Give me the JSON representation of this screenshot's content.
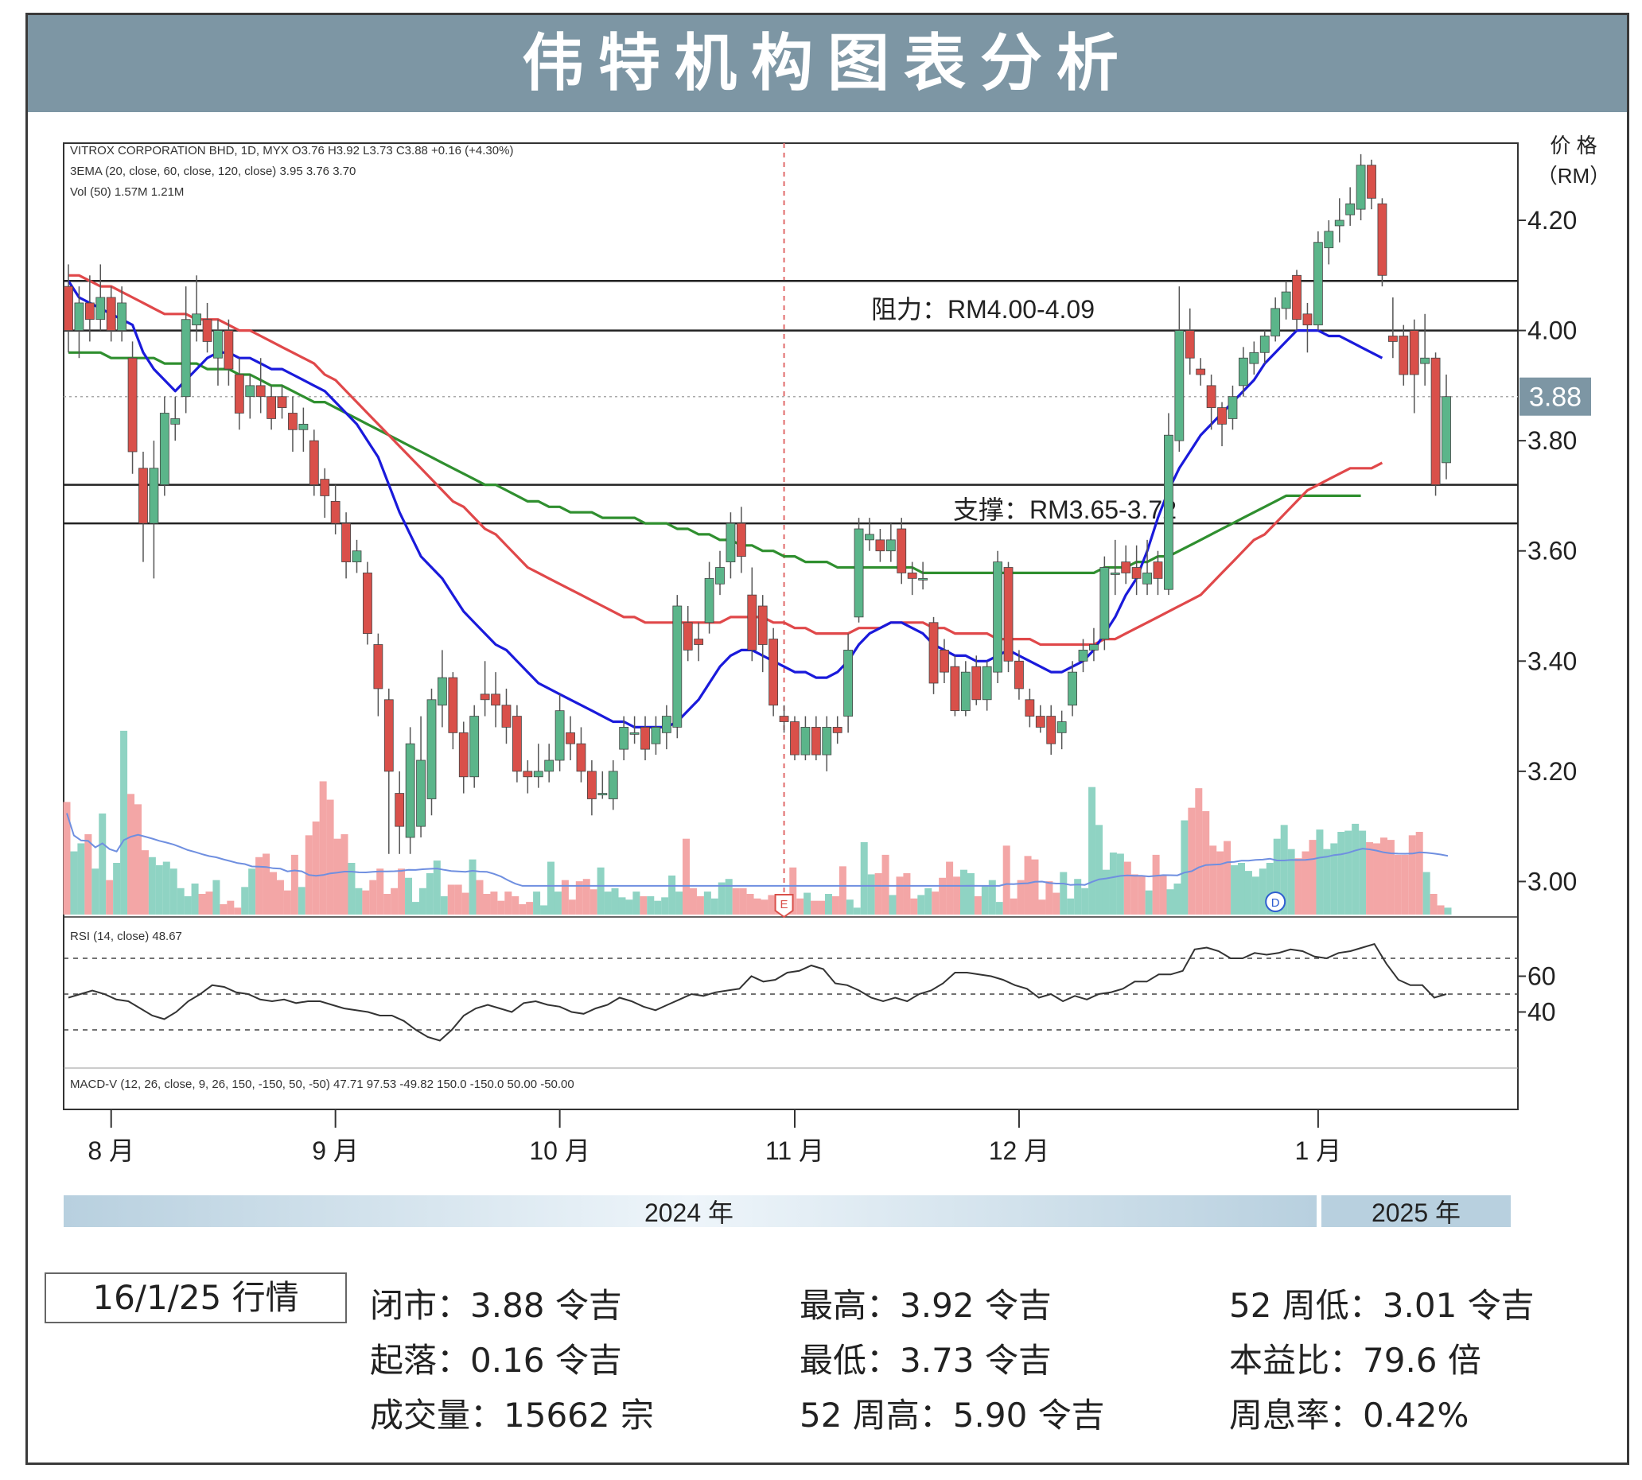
{
  "title": "伟特机构图表分析",
  "chart_data": {
    "type": "candlestick",
    "header_lines": [
      "VITROX CORPORATION BHD, 1D, MYX  O3.76  H3.92  L3.73  C3.88  +0.16 (+4.30%)",
      "3EMA (20, close, 60, close, 120, close)  3.95  3.76  3.70",
      "Vol (50)  1.57M  1.21M"
    ],
    "price_axis_title": [
      "价 格",
      "（RM）"
    ],
    "price_ticks": [
      "4.20",
      "4.00",
      "3.80",
      "3.60",
      "3.40",
      "3.20",
      "3.00"
    ],
    "price_tick_values": [
      4.2,
      4.0,
      3.8,
      3.6,
      3.4,
      3.2,
      3.0
    ],
    "ylim": [
      2.94,
      4.34
    ],
    "last_price_label": "3.88",
    "last_price": 3.88,
    "resistance": {
      "label": "阻力：RM4.00-4.09",
      "low": 4.0,
      "high": 4.09
    },
    "support": {
      "label": "支撑：RM3.65-3.72",
      "low": 3.65,
      "high": 3.72
    },
    "earnings_marker": "E",
    "dividend_marker": "D",
    "candles": [
      [
        4.08,
        4.0,
        4.12,
        3.96
      ],
      [
        4.0,
        4.05,
        4.08,
        3.95
      ],
      [
        4.05,
        4.02,
        4.1,
        3.98
      ],
      [
        4.02,
        4.06,
        4.12,
        4.0
      ],
      [
        4.06,
        4.0,
        4.08,
        3.98
      ],
      [
        4.0,
        4.05,
        4.08,
        3.98
      ],
      [
        3.95,
        3.78,
        3.98,
        3.74
      ],
      [
        3.75,
        3.65,
        3.78,
        3.58
      ],
      [
        3.65,
        3.75,
        3.8,
        3.55
      ],
      [
        3.72,
        3.85,
        3.88,
        3.7
      ],
      [
        3.83,
        3.84,
        3.88,
        3.8
      ],
      [
        3.88,
        4.02,
        4.08,
        3.85
      ],
      [
        4.01,
        4.03,
        4.1,
        3.98
      ],
      [
        4.02,
        3.98,
        4.05,
        3.96
      ],
      [
        3.95,
        4.0,
        4.02,
        3.9
      ],
      [
        4.0,
        3.93,
        4.02,
        3.9
      ],
      [
        3.92,
        3.85,
        3.95,
        3.82
      ],
      [
        3.88,
        3.9,
        3.92,
        3.84
      ],
      [
        3.9,
        3.88,
        3.95,
        3.85
      ],
      [
        3.88,
        3.84,
        3.9,
        3.82
      ],
      [
        3.88,
        3.86,
        3.9,
        3.84
      ],
      [
        3.85,
        3.82,
        3.88,
        3.78
      ],
      [
        3.82,
        3.83,
        3.86,
        3.78
      ],
      [
        3.8,
        3.72,
        3.82,
        3.7
      ],
      [
        3.73,
        3.7,
        3.75,
        3.66
      ],
      [
        3.69,
        3.65,
        3.72,
        3.63
      ],
      [
        3.65,
        3.58,
        3.67,
        3.55
      ],
      [
        3.58,
        3.6,
        3.62,
        3.56
      ],
      [
        3.56,
        3.45,
        3.58,
        3.43
      ],
      [
        3.43,
        3.35,
        3.45,
        3.3
      ],
      [
        3.33,
        3.2,
        3.35,
        3.05
      ],
      [
        3.16,
        3.1,
        3.2,
        3.05
      ],
      [
        3.08,
        3.25,
        3.28,
        3.05
      ],
      [
        3.1,
        3.22,
        3.3,
        3.08
      ],
      [
        3.15,
        3.33,
        3.35,
        3.12
      ],
      [
        3.32,
        3.37,
        3.42,
        3.28
      ],
      [
        3.37,
        3.27,
        3.38,
        3.24
      ],
      [
        3.27,
        3.19,
        3.29,
        3.16
      ],
      [
        3.19,
        3.3,
        3.32,
        3.17
      ],
      [
        3.34,
        3.33,
        3.4,
        3.3
      ],
      [
        3.34,
        3.32,
        3.38,
        3.28
      ],
      [
        3.32,
        3.28,
        3.35,
        3.25
      ],
      [
        3.3,
        3.2,
        3.32,
        3.18
      ],
      [
        3.2,
        3.19,
        3.22,
        3.16
      ],
      [
        3.19,
        3.2,
        3.25,
        3.17
      ],
      [
        3.2,
        3.22,
        3.25,
        3.18
      ],
      [
        3.22,
        3.31,
        3.34,
        3.2
      ],
      [
        3.27,
        3.25,
        3.3,
        3.22
      ],
      [
        3.25,
        3.2,
        3.28,
        3.18
      ],
      [
        3.2,
        3.15,
        3.22,
        3.12
      ],
      [
        3.16,
        3.16,
        3.2,
        3.15
      ],
      [
        3.15,
        3.2,
        3.22,
        3.13
      ],
      [
        3.24,
        3.28,
        3.3,
        3.22
      ],
      [
        3.27,
        3.27,
        3.3,
        3.25
      ],
      [
        3.28,
        3.24,
        3.3,
        3.22
      ],
      [
        3.25,
        3.28,
        3.3,
        3.23
      ],
      [
        3.27,
        3.3,
        3.32,
        3.24
      ],
      [
        3.28,
        3.5,
        3.52,
        3.26
      ],
      [
        3.47,
        3.42,
        3.5,
        3.4
      ],
      [
        3.44,
        3.43,
        3.47,
        3.4
      ],
      [
        3.47,
        3.55,
        3.58,
        3.45
      ],
      [
        3.54,
        3.57,
        3.6,
        3.52
      ],
      [
        3.58,
        3.65,
        3.67,
        3.55
      ],
      [
        3.65,
        3.59,
        3.68,
        3.56
      ],
      [
        3.52,
        3.42,
        3.57,
        3.4
      ],
      [
        3.5,
        3.43,
        3.52,
        3.38
      ],
      [
        3.44,
        3.32,
        3.46,
        3.3
      ],
      [
        3.3,
        3.29,
        3.32,
        3.27
      ],
      [
        3.29,
        3.23,
        3.3,
        3.22
      ],
      [
        3.23,
        3.28,
        3.3,
        3.22
      ],
      [
        3.28,
        3.23,
        3.3,
        3.22
      ],
      [
        3.23,
        3.28,
        3.3,
        3.2
      ],
      [
        3.28,
        3.27,
        3.3,
        3.25
      ],
      [
        3.3,
        3.42,
        3.45,
        3.27
      ],
      [
        3.48,
        3.64,
        3.66,
        3.47
      ],
      [
        3.62,
        3.63,
        3.66,
        3.6
      ],
      [
        3.62,
        3.6,
        3.64,
        3.58
      ],
      [
        3.6,
        3.62,
        3.65,
        3.58
      ],
      [
        3.64,
        3.56,
        3.66,
        3.54
      ],
      [
        3.56,
        3.55,
        3.58,
        3.52
      ],
      [
        3.55,
        3.55,
        3.58,
        3.53
      ],
      [
        3.47,
        3.36,
        3.48,
        3.34
      ],
      [
        3.42,
        3.38,
        3.44,
        3.36
      ],
      [
        3.39,
        3.31,
        3.41,
        3.3
      ],
      [
        3.31,
        3.38,
        3.4,
        3.3
      ],
      [
        3.39,
        3.33,
        3.41,
        3.32
      ],
      [
        3.33,
        3.39,
        3.4,
        3.31
      ],
      [
        3.38,
        3.58,
        3.6,
        3.36
      ],
      [
        3.57,
        3.4,
        3.58,
        3.38
      ],
      [
        3.4,
        3.35,
        3.42,
        3.33
      ],
      [
        3.33,
        3.3,
        3.35,
        3.28
      ],
      [
        3.3,
        3.28,
        3.32,
        3.27
      ],
      [
        3.3,
        3.25,
        3.32,
        3.23
      ],
      [
        3.27,
        3.29,
        3.31,
        3.24
      ],
      [
        3.32,
        3.38,
        3.4,
        3.3
      ],
      [
        3.4,
        3.42,
        3.44,
        3.38
      ],
      [
        3.42,
        3.43,
        3.46,
        3.4
      ],
      [
        3.44,
        3.57,
        3.59,
        3.42
      ],
      [
        3.56,
        3.56,
        3.62,
        3.52
      ],
      [
        3.58,
        3.56,
        3.61,
        3.54
      ],
      [
        3.57,
        3.55,
        3.61,
        3.52
      ],
      [
        3.54,
        3.56,
        3.62,
        3.52
      ],
      [
        3.58,
        3.55,
        3.6,
        3.52
      ],
      [
        3.53,
        3.81,
        3.85,
        3.52
      ],
      [
        3.8,
        4.0,
        4.08,
        3.78
      ],
      [
        4.0,
        3.95,
        4.04,
        3.92
      ],
      [
        3.93,
        3.92,
        3.95,
        3.9
      ],
      [
        3.9,
        3.86,
        3.92,
        3.82
      ],
      [
        3.86,
        3.83,
        3.87,
        3.79
      ],
      [
        3.84,
        3.88,
        3.9,
        3.82
      ],
      [
        3.9,
        3.95,
        3.97,
        3.88
      ],
      [
        3.94,
        3.96,
        3.98,
        3.92
      ],
      [
        3.96,
        3.99,
        4.0,
        3.94
      ],
      [
        3.99,
        4.04,
        4.06,
        3.98
      ],
      [
        4.04,
        4.07,
        4.09,
        4.02
      ],
      [
        4.1,
        4.02,
        4.11,
        4.0
      ],
      [
        4.03,
        4.01,
        4.05,
        3.96
      ],
      [
        4.01,
        4.16,
        4.18,
        4.0
      ],
      [
        4.15,
        4.18,
        4.2,
        4.12
      ],
      [
        4.19,
        4.2,
        4.24,
        4.16
      ],
      [
        4.21,
        4.23,
        4.26,
        4.19
      ],
      [
        4.22,
        4.3,
        4.32,
        4.2
      ],
      [
        4.3,
        4.24,
        4.31,
        4.22
      ],
      [
        4.23,
        4.1,
        4.24,
        4.08
      ],
      [
        3.99,
        3.98,
        4.06,
        3.95
      ],
      [
        3.99,
        3.92,
        4.01,
        3.9
      ],
      [
        4.0,
        3.92,
        4.02,
        3.85
      ],
      [
        3.94,
        3.95,
        4.03,
        3.9
      ],
      [
        3.95,
        3.72,
        3.96,
        3.7
      ],
      [
        3.76,
        3.88,
        3.92,
        3.73
      ]
    ],
    "ema20": [
      4.09,
      4.06,
      4.05,
      4.04,
      4.03,
      4.02,
      4.01,
      3.96,
      3.93,
      3.91,
      3.89,
      3.91,
      3.93,
      3.95,
      3.96,
      3.96,
      3.95,
      3.95,
      3.94,
      3.93,
      3.93,
      3.92,
      3.91,
      3.9,
      3.89,
      3.87,
      3.85,
      3.83,
      3.8,
      3.77,
      3.72,
      3.67,
      3.63,
      3.59,
      3.57,
      3.55,
      3.52,
      3.49,
      3.47,
      3.45,
      3.43,
      3.42,
      3.4,
      3.38,
      3.36,
      3.35,
      3.34,
      3.33,
      3.32,
      3.31,
      3.3,
      3.29,
      3.29,
      3.28,
      3.28,
      3.28,
      3.28,
      3.29,
      3.31,
      3.33,
      3.36,
      3.39,
      3.41,
      3.42,
      3.42,
      3.41,
      3.4,
      3.39,
      3.38,
      3.38,
      3.37,
      3.37,
      3.38,
      3.4,
      3.43,
      3.45,
      3.46,
      3.47,
      3.47,
      3.46,
      3.45,
      3.43,
      3.42,
      3.41,
      3.41,
      3.4,
      3.4,
      3.41,
      3.42,
      3.41,
      3.4,
      3.39,
      3.38,
      3.38,
      3.39,
      3.4,
      3.42,
      3.45,
      3.48,
      3.52,
      3.55,
      3.6,
      3.66,
      3.71,
      3.75,
      3.78,
      3.81,
      3.83,
      3.85,
      3.87,
      3.89,
      3.91,
      3.94,
      3.96,
      3.98,
      4.0,
      4.0,
      4.0,
      3.99,
      3.99,
      3.98,
      3.97,
      3.96,
      3.95
    ],
    "ema60": [
      4.1,
      4.1,
      4.09,
      4.08,
      4.08,
      4.07,
      4.06,
      4.05,
      4.04,
      4.03,
      4.03,
      4.03,
      4.02,
      4.02,
      4.02,
      4.01,
      4.0,
      4.0,
      3.99,
      3.98,
      3.97,
      3.96,
      3.95,
      3.94,
      3.92,
      3.91,
      3.89,
      3.87,
      3.85,
      3.83,
      3.81,
      3.79,
      3.77,
      3.75,
      3.73,
      3.71,
      3.69,
      3.68,
      3.66,
      3.64,
      3.63,
      3.61,
      3.59,
      3.57,
      3.56,
      3.55,
      3.54,
      3.53,
      3.52,
      3.51,
      3.5,
      3.49,
      3.48,
      3.48,
      3.47,
      3.47,
      3.47,
      3.47,
      3.47,
      3.47,
      3.47,
      3.47,
      3.48,
      3.48,
      3.48,
      3.48,
      3.47,
      3.47,
      3.46,
      3.46,
      3.45,
      3.45,
      3.45,
      3.45,
      3.46,
      3.46,
      3.46,
      3.47,
      3.47,
      3.47,
      3.47,
      3.46,
      3.46,
      3.45,
      3.45,
      3.45,
      3.45,
      3.44,
      3.44,
      3.44,
      3.44,
      3.43,
      3.43,
      3.43,
      3.43,
      3.43,
      3.43,
      3.44,
      3.44,
      3.45,
      3.46,
      3.47,
      3.48,
      3.49,
      3.5,
      3.51,
      3.52,
      3.54,
      3.56,
      3.58,
      3.6,
      3.62,
      3.63,
      3.65,
      3.67,
      3.69,
      3.71,
      3.72,
      3.73,
      3.74,
      3.75,
      3.75,
      3.75,
      3.76
    ],
    "ema120": [
      3.96,
      3.96,
      3.96,
      3.96,
      3.95,
      3.95,
      3.95,
      3.95,
      3.95,
      3.94,
      3.94,
      3.94,
      3.94,
      3.93,
      3.93,
      3.93,
      3.92,
      3.92,
      3.91,
      3.9,
      3.9,
      3.89,
      3.88,
      3.87,
      3.87,
      3.86,
      3.85,
      3.84,
      3.83,
      3.82,
      3.81,
      3.8,
      3.79,
      3.78,
      3.77,
      3.76,
      3.75,
      3.74,
      3.73,
      3.72,
      3.72,
      3.71,
      3.7,
      3.69,
      3.69,
      3.68,
      3.68,
      3.67,
      3.67,
      3.67,
      3.66,
      3.66,
      3.66,
      3.66,
      3.65,
      3.65,
      3.65,
      3.64,
      3.64,
      3.63,
      3.63,
      3.62,
      3.62,
      3.61,
      3.61,
      3.6,
      3.6,
      3.59,
      3.59,
      3.58,
      3.58,
      3.58,
      3.57,
      3.57,
      3.57,
      3.57,
      3.57,
      3.57,
      3.57,
      3.57,
      3.56,
      3.56,
      3.56,
      3.56,
      3.56,
      3.56,
      3.56,
      3.56,
      3.56,
      3.56,
      3.56,
      3.56,
      3.56,
      3.56,
      3.56,
      3.56,
      3.56,
      3.57,
      3.57,
      3.57,
      3.58,
      3.58,
      3.59,
      3.59,
      3.6,
      3.61,
      3.62,
      3.63,
      3.64,
      3.65,
      3.66,
      3.67,
      3.68,
      3.69,
      3.7,
      3.7,
      3.7,
      3.7,
      3.7,
      3.7,
      3.7,
      3.7
    ],
    "volume": [
      0.98,
      0.55,
      0.62,
      0.7,
      0.4,
      0.88,
      0.3,
      0.45,
      1.6,
      1.05,
      0.96,
      0.56,
      0.5,
      0.43,
      0.46,
      0.4,
      0.23,
      0.16,
      0.27,
      0.18,
      0.2,
      0.3,
      0.09,
      0.12,
      0.06,
      0.24,
      0.4,
      0.5,
      0.53,
      0.37,
      0.3,
      0.21,
      0.52,
      0.24,
      0.69,
      0.81,
      1.16,
      1.0,
      0.66,
      0.7,
      0.45,
      0.23,
      0.21,
      0.3,
      0.4,
      0.18,
      0.23,
      0.4,
      0.32,
      0.11,
      0.23,
      0.36,
      0.47,
      0.16,
      0.26,
      0.26,
      0.19,
      0.48,
      0.3,
      0.18,
      0.2,
      0.12,
      0.2,
      0.16,
      0.09,
      0.11,
      0.2,
      0.08,
      0.46,
      0.2,
      0.3,
      0.13,
      0.29,
      0.31,
      0.22,
      0.41,
      0.2,
      0.23,
      0.15,
      0.13,
      0.2,
      0.16,
      0.16,
      0.12,
      0.15,
      0.34,
      0.2,
      0.66,
      0.23,
      0.16,
      0.2,
      0.14,
      0.28,
      0.31,
      0.23,
      0.23,
      0.18,
      0.14,
      0.13,
      0.17,
      0.12,
      0.11,
      0.41,
      0.14,
      0.19,
      0.12,
      0.12,
      0.18,
      0.16,
      0.42,
      0.13,
      0.06,
      0.63,
      0.35,
      0.36,
      0.52,
      0.17,
      0.33,
      0.36,
      0.14,
      0.17,
      0.23,
      0.2,
      0.32,
      0.46,
      0.33,
      0.39,
      0.36,
      0.16,
      0.25,
      0.3,
      0.11,
      0.6,
      0.14,
      0.3,
      0.51,
      0.48,
      0.13,
      0.29,
      0.19,
      0.37,
      0.14,
      0.31,
      0.23,
      1.11,
      0.78,
      0.39,
      0.54,
      0.53,
      0.46,
      0.35,
      0.34,
      0.21,
      0.52,
      0.34,
      0.22,
      0.27,
      0.82,
      0.93,
      1.1,
      0.9,
      0.6,
      0.55,
      0.64,
      0.43,
      0.45,
      0.38,
      0.33,
      0.4,
      0.45,
      0.66,
      0.78,
      0.57,
      0.49,
      0.55,
      0.65,
      0.74,
      0.57,
      0.62,
      0.72,
      0.73,
      0.79,
      0.73,
      0.63,
      0.62,
      0.67,
      0.65,
      0.52,
      0.52,
      0.69,
      0.72,
      0.37,
      0.18,
      0.08,
      0.06
    ],
    "rsi_label": "RSI (14, close)  48.67",
    "rsi_ticks": [
      "60",
      "40"
    ],
    "rsi_tick_values": [
      60,
      40
    ],
    "rsi_ylim": [
      10,
      90
    ],
    "rsi_levels": [
      70,
      50,
      30
    ],
    "rsi": [
      48,
      50,
      52,
      50,
      47,
      46,
      42,
      38,
      36,
      40,
      46,
      50,
      55,
      54,
      51,
      50,
      47,
      46,
      47,
      45,
      46,
      46,
      44,
      42,
      41,
      40,
      38,
      38,
      35,
      30,
      26,
      24,
      30,
      38,
      42,
      44,
      42,
      40,
      45,
      46,
      44,
      43,
      40,
      39,
      42,
      44,
      48,
      46,
      43,
      41,
      44,
      47,
      50,
      49,
      51,
      52,
      53,
      60,
      57,
      58,
      62,
      63,
      66,
      64,
      56,
      55,
      52,
      48,
      46,
      48,
      46,
      50,
      52,
      56,
      62,
      62,
      61,
      60,
      58,
      55,
      53,
      48,
      50,
      46,
      49,
      47,
      50,
      51,
      53,
      57,
      57,
      61,
      61,
      63,
      75,
      76,
      74,
      70,
      70,
      73,
      72,
      73,
      75,
      74,
      71,
      70,
      73,
      74,
      76,
      78,
      67,
      58,
      55,
      55,
      48,
      50
    ],
    "macd_label": "MACD-V (12, 26, close, 9, 26, 150, -150, 50, -50)  47.71  97.53  -49.82  150.0  -150.0  50.00  -50.00",
    "x_month_labels": [
      "8 月",
      "9 月",
      "10 月",
      "11 月",
      "12 月",
      "1 月"
    ],
    "x_month_candle_index": [
      4,
      25,
      46,
      68,
      89,
      117
    ],
    "year_labels": [
      "2024 年",
      "2025 年"
    ]
  },
  "info_box": {
    "label": "16/1/25 行情"
  },
  "stats": {
    "close": "闭市：3.88 令吉",
    "change": "起落：0.16 令吉",
    "volume": "成交量：15662 宗",
    "high": "最高：3.92 令吉",
    "low": "最低：3.73 令吉",
    "high52": "52 周高：5.90 令吉",
    "low52": "52 周低：3.01 令吉",
    "pe": "本益比：79.6 倍",
    "yield": "周息率：0.42%"
  },
  "colors": {
    "header_bg": "#7d96a4",
    "up": "#5bb58a",
    "down": "#d9504a",
    "ema20": "#1a1adb",
    "ema60": "#e0484a",
    "ema120": "#2f8f2f",
    "vol_up": "#8fd3c3",
    "vol_down": "#f3a6a6",
    "vol_ma": "#6f8fe0"
  }
}
